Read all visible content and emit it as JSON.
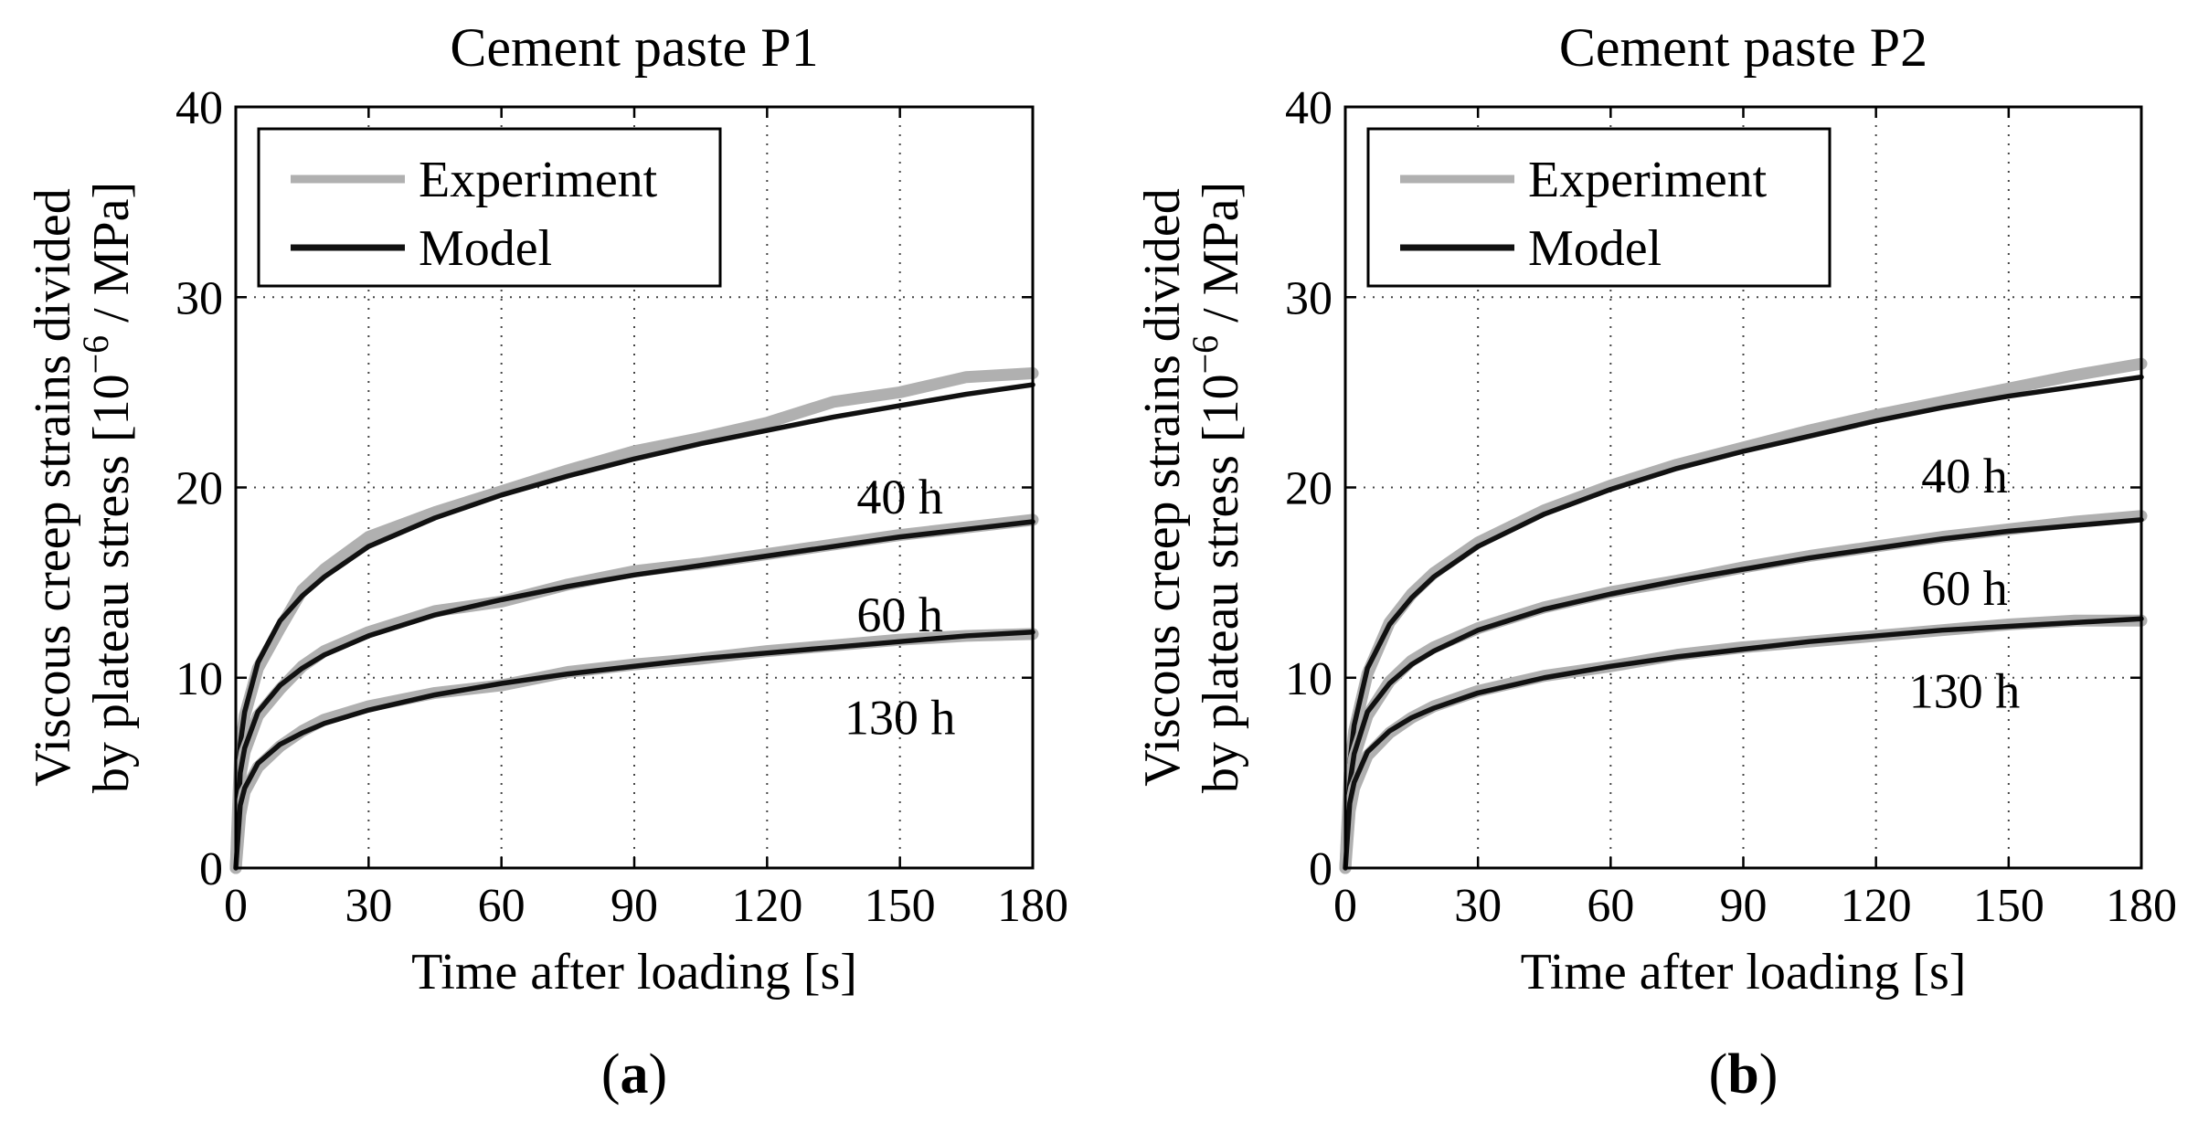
{
  "chart_data": [
    {
      "type": "line",
      "panel_letter": "a",
      "title": "Cement paste P1",
      "xlabel": "Time after loading [s]",
      "ylabel_line1": "Viscous creep strains divided",
      "ylabel_line2_prefix": "by plateau stress [10",
      "ylabel_line2_exp": "−6",
      "ylabel_line2_suffix": " / MPa]",
      "xlim": [
        0,
        180
      ],
      "ylim": [
        0,
        40
      ],
      "xticks": [
        0,
        30,
        60,
        90,
        120,
        150,
        180
      ],
      "yticks": [
        0,
        10,
        20,
        30,
        40
      ],
      "grid": true,
      "legend_position": "top-left",
      "legend": [
        {
          "label": "Experiment",
          "color": "#b0b0b0"
        },
        {
          "label": "Model",
          "color": "#111111"
        }
      ],
      "curve_x": [
        0,
        1,
        2,
        5,
        10,
        15,
        20,
        30,
        45,
        60,
        75,
        90,
        105,
        120,
        135,
        150,
        165,
        180
      ],
      "series": [
        {
          "name": "40 h",
          "label": "40 h",
          "label_at": [
            150,
            19.5
          ],
          "model": [
            0,
            6.5,
            8.2,
            10.8,
            13.0,
            14.3,
            15.3,
            16.9,
            18.4,
            19.6,
            20.6,
            21.5,
            22.3,
            23.0,
            23.7,
            24.3,
            24.9,
            25.4
          ],
          "experiment": [
            0,
            6.2,
            8.0,
            10.5,
            12.6,
            14.6,
            15.7,
            17.4,
            18.7,
            19.8,
            20.9,
            21.9,
            22.6,
            23.4,
            24.5,
            25.0,
            25.8,
            26.0
          ]
        },
        {
          "name": "60 h",
          "label": "60 h",
          "label_at": [
            150,
            13.3
          ],
          "model": [
            0,
            5.0,
            6.3,
            8.2,
            9.6,
            10.5,
            11.2,
            12.2,
            13.3,
            14.1,
            14.8,
            15.4,
            15.9,
            16.4,
            16.9,
            17.4,
            17.8,
            18.2
          ],
          "experiment": [
            0,
            4.8,
            6.1,
            8.0,
            9.4,
            10.6,
            11.4,
            12.4,
            13.5,
            14.0,
            14.9,
            15.6,
            16.0,
            16.5,
            17.0,
            17.5,
            17.9,
            18.3
          ]
        },
        {
          "name": "130 h",
          "label": "130 h",
          "label_at": [
            150,
            7.9
          ],
          "model": [
            0,
            3.3,
            4.2,
            5.5,
            6.5,
            7.1,
            7.6,
            8.3,
            9.1,
            9.7,
            10.2,
            10.6,
            11.0,
            11.3,
            11.6,
            11.9,
            12.2,
            12.4
          ],
          "experiment": [
            0,
            2.8,
            4.0,
            5.3,
            6.4,
            7.2,
            7.8,
            8.5,
            9.2,
            9.6,
            10.3,
            10.7,
            11.0,
            11.4,
            11.7,
            12.0,
            12.2,
            12.3
          ]
        }
      ]
    },
    {
      "type": "line",
      "panel_letter": "b",
      "title": "Cement paste P2",
      "xlabel": "Time after loading [s]",
      "ylabel_line1": "Viscous creep strains divided",
      "ylabel_line2_prefix": "by plateau stress [10",
      "ylabel_line2_exp": "−6",
      "ylabel_line2_suffix": " / MPa]",
      "xlim": [
        0,
        180
      ],
      "ylim": [
        0,
        40
      ],
      "xticks": [
        0,
        30,
        60,
        90,
        120,
        150,
        180
      ],
      "yticks": [
        0,
        10,
        20,
        30,
        40
      ],
      "grid": true,
      "legend_position": "top-left",
      "legend": [
        {
          "label": "Experiment",
          "color": "#b0b0b0"
        },
        {
          "label": "Model",
          "color": "#111111"
        }
      ],
      "curve_x": [
        0,
        1,
        2,
        5,
        10,
        15,
        20,
        30,
        45,
        60,
        75,
        90,
        105,
        120,
        135,
        150,
        165,
        180
      ],
      "series": [
        {
          "name": "40 h",
          "label": "40 h",
          "label_at": [
            140,
            20.6
          ],
          "model": [
            0,
            5.5,
            7.5,
            10.5,
            12.8,
            14.2,
            15.3,
            16.9,
            18.6,
            19.9,
            21.0,
            21.9,
            22.7,
            23.5,
            24.2,
            24.8,
            25.3,
            25.8
          ],
          "experiment": [
            0,
            5.0,
            7.2,
            10.2,
            12.9,
            14.4,
            15.5,
            17.1,
            18.8,
            20.1,
            21.2,
            22.1,
            23.0,
            23.8,
            24.5,
            25.2,
            25.9,
            26.5
          ]
        },
        {
          "name": "60 h",
          "label": "60 h",
          "label_at": [
            140,
            14.7
          ],
          "model": [
            0,
            4.4,
            6.0,
            8.2,
            9.7,
            10.7,
            11.4,
            12.5,
            13.6,
            14.4,
            15.1,
            15.7,
            16.3,
            16.8,
            17.3,
            17.7,
            18.0,
            18.3
          ],
          "experiment": [
            0,
            4.2,
            5.8,
            8.0,
            9.8,
            10.9,
            11.6,
            12.6,
            13.7,
            14.5,
            15.1,
            15.8,
            16.4,
            16.9,
            17.4,
            17.8,
            18.2,
            18.5
          ]
        },
        {
          "name": "130 h",
          "label": "130 h",
          "label_at": [
            140,
            9.3
          ],
          "model": [
            0,
            3.4,
            4.5,
            6.1,
            7.2,
            7.9,
            8.4,
            9.2,
            10.0,
            10.6,
            11.1,
            11.5,
            11.9,
            12.2,
            12.5,
            12.7,
            12.9,
            13.1
          ],
          "experiment": [
            0,
            3.0,
            4.2,
            5.9,
            7.1,
            7.9,
            8.5,
            9.3,
            10.1,
            10.6,
            11.2,
            11.6,
            11.9,
            12.2,
            12.5,
            12.8,
            13.0,
            13.0
          ]
        }
      ]
    }
  ]
}
